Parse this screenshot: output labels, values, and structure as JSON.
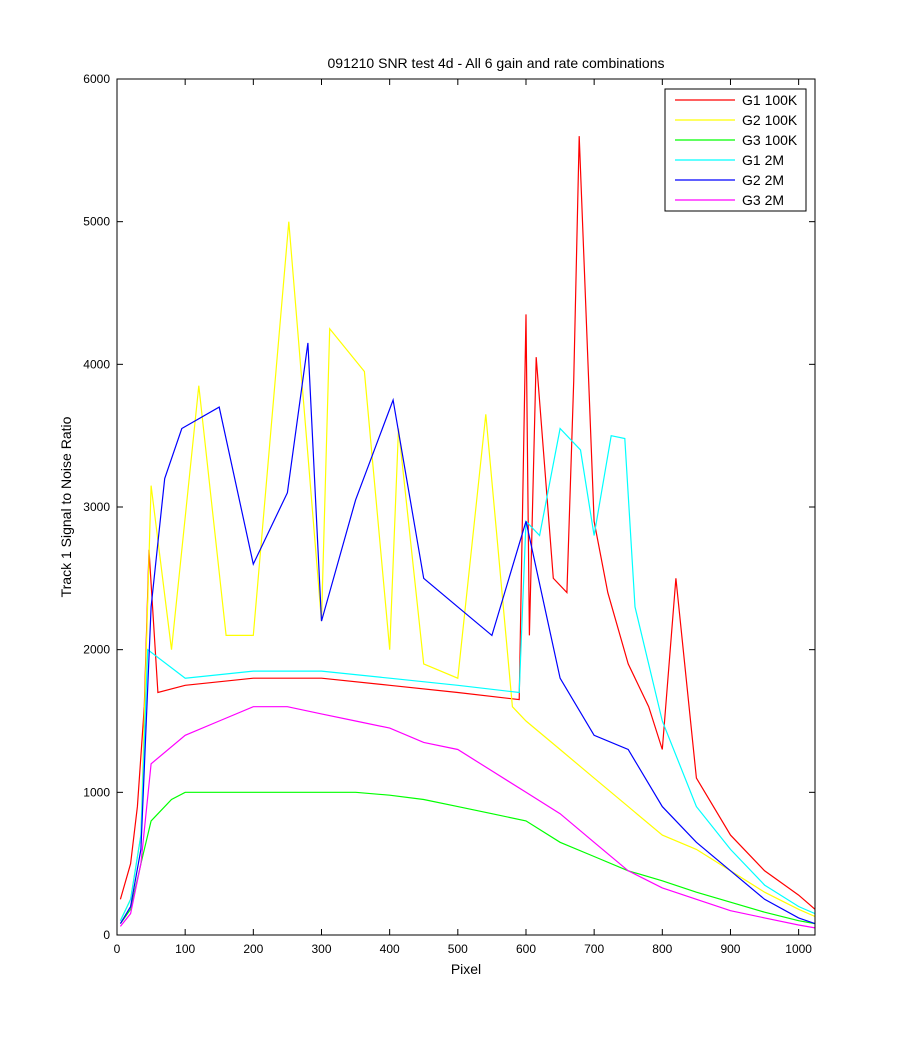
{
  "chart_data": {
    "type": "line",
    "title": "091210  SNR test 4d - All 6 gain and rate combinations",
    "xlabel": "Pixel",
    "ylabel": "Track 1 Signal to Noise Ratio",
    "xlim": [
      0,
      1024
    ],
    "ylim": [
      0,
      6000
    ],
    "xticks": [
      0,
      100,
      200,
      300,
      400,
      500,
      600,
      700,
      800,
      900,
      1000
    ],
    "yticks": [
      0,
      1000,
      2000,
      3000,
      4000,
      5000,
      6000
    ],
    "grid": false,
    "legend_position": "top-right",
    "series": [
      {
        "name": "G1 100K",
        "color": "#ff0000",
        "x": [
          5,
          20,
          30,
          40,
          47,
          60,
          100,
          200,
          300,
          400,
          500,
          590,
          600,
          605,
          615,
          640,
          660,
          670,
          678,
          700,
          720,
          750,
          780,
          800,
          820,
          850,
          900,
          950,
          1000,
          1024
        ],
        "y": [
          250,
          500,
          900,
          1600,
          2700,
          1700,
          1750,
          1800,
          1800,
          1750,
          1700,
          1650,
          4350,
          2100,
          4050,
          2500,
          2400,
          3880,
          5600,
          2900,
          2400,
          1900,
          1600,
          1300,
          2500,
          1100,
          700,
          450,
          280,
          180
        ]
      },
      {
        "name": "G2 100K",
        "color": "#ffff00",
        "x": [
          5,
          20,
          35,
          50,
          80,
          120,
          160,
          200,
          252,
          300,
          312,
          363,
          400,
          413,
          450,
          500,
          541,
          580,
          600,
          650,
          700,
          750,
          800,
          850,
          900,
          950,
          1000,
          1024
        ],
        "y": [
          100,
          250,
          700,
          3150,
          2000,
          3850,
          2100,
          2100,
          5000,
          2200,
          4250,
          3950,
          2000,
          3550,
          1900,
          1800,
          3650,
          1600,
          1500,
          1300,
          1100,
          900,
          700,
          600,
          450,
          300,
          180,
          130
        ]
      },
      {
        "name": "G3 100K",
        "color": "#00ff00",
        "x": [
          5,
          20,
          35,
          50,
          80,
          100,
          150,
          200,
          250,
          300,
          350,
          400,
          450,
          500,
          550,
          600,
          650,
          700,
          750,
          800,
          850,
          900,
          950,
          1000,
          1024
        ],
        "y": [
          80,
          180,
          500,
          800,
          950,
          1000,
          1000,
          1000,
          1000,
          1000,
          1000,
          980,
          950,
          900,
          850,
          800,
          650,
          550,
          450,
          380,
          300,
          230,
          160,
          100,
          80
        ]
      },
      {
        "name": "G1 2M",
        "color": "#00ffff",
        "x": [
          5,
          20,
          35,
          45,
          100,
          200,
          300,
          400,
          500,
          590,
          600,
          620,
          650,
          680,
          700,
          725,
          745,
          760,
          800,
          850,
          900,
          950,
          1000,
          1024
        ],
        "y": [
          100,
          250,
          700,
          2000,
          1800,
          1850,
          1850,
          1800,
          1750,
          1700,
          2900,
          2800,
          3550,
          3400,
          2800,
          3500,
          3480,
          2300,
          1500,
          900,
          600,
          350,
          200,
          150
        ]
      },
      {
        "name": "G2 2M",
        "color": "#0000ff",
        "x": [
          5,
          20,
          35,
          50,
          70,
          95,
          150,
          200,
          250,
          280,
          300,
          350,
          405,
          450,
          500,
          550,
          600,
          650,
          700,
          750,
          800,
          850,
          900,
          950,
          1000,
          1024
        ],
        "y": [
          80,
          200,
          600,
          2300,
          3200,
          3550,
          3700,
          2600,
          3100,
          4150,
          2200,
          3050,
          3750,
          2500,
          2300,
          2100,
          2900,
          1800,
          1400,
          1300,
          900,
          650,
          450,
          250,
          120,
          80
        ]
      },
      {
        "name": "G3 2M",
        "color": "#ff00ff",
        "x": [
          5,
          20,
          35,
          50,
          100,
          150,
          200,
          250,
          300,
          350,
          400,
          450,
          500,
          550,
          600,
          650,
          700,
          750,
          800,
          850,
          900,
          950,
          1000,
          1024
        ],
        "y": [
          60,
          150,
          500,
          1200,
          1400,
          1500,
          1600,
          1600,
          1550,
          1500,
          1450,
          1350,
          1300,
          1150,
          1000,
          850,
          650,
          450,
          330,
          250,
          170,
          120,
          70,
          50
        ]
      }
    ]
  }
}
